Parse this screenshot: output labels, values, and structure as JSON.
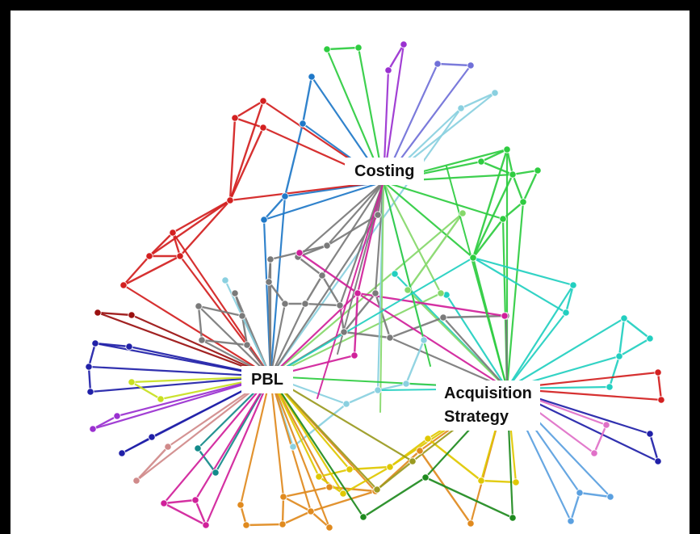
{
  "hubs": {
    "costing": "Costing",
    "pbl": "PBL",
    "acquisition": [
      "Acquisition",
      "Strategy"
    ]
  },
  "colors": {
    "red": "#d32020",
    "darkred": "#9a1010",
    "blue": "#1f78c8",
    "navy": "#2020a8",
    "green": "#2ecc40",
    "lightgreen": "#86d86a",
    "darkgreen": "#1e8a1e",
    "teal": "#22cfc0",
    "cyan": "#2ab8e0",
    "skyblue": "#5aa0e0",
    "gray": "#7a7a7a",
    "magenta": "#d0209a",
    "purple": "#9a30d0",
    "violet": "#7070d8",
    "orange": "#e08a1e",
    "gold": "#e0c800",
    "olive": "#9a9a20",
    "pink": "#e070c8",
    "rose": "#d08a8a",
    "lime": "#c8e020",
    "lightblue": "#8ad0e0",
    "darkteal": "#138a8a"
  }
}
